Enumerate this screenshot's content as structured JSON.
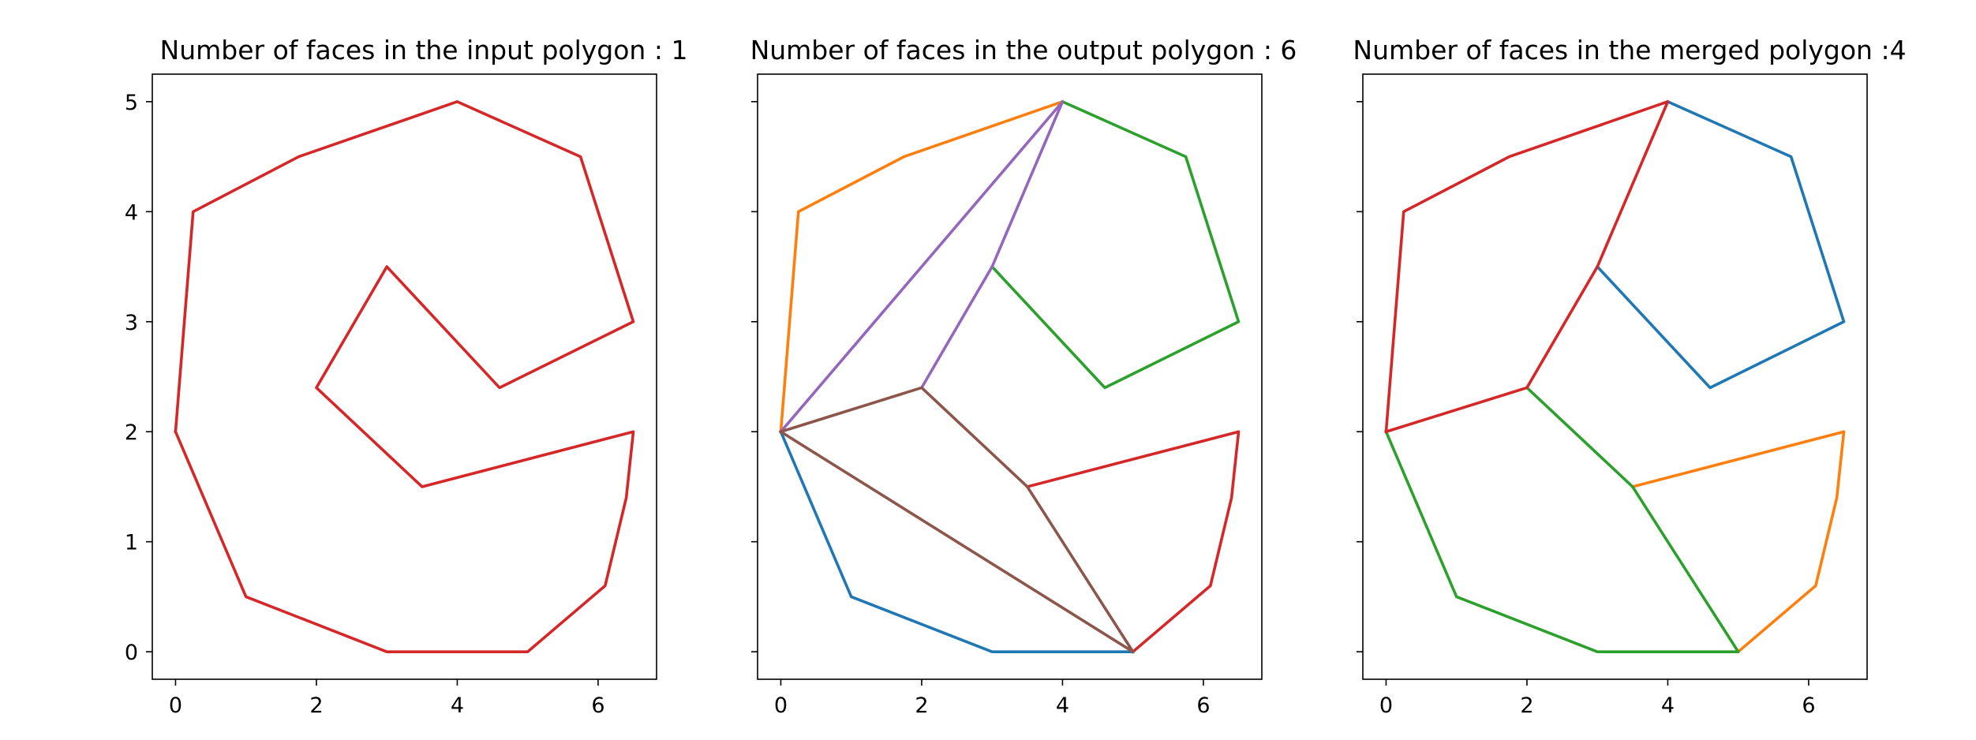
{
  "chart_data": [
    {
      "type": "line",
      "title": "Number of faces in the input polygon :  1",
      "xlim": [
        -0.33,
        6.83
      ],
      "ylim": [
        -0.25,
        5.25
      ],
      "x_ticks": [
        0,
        2,
        4,
        6
      ],
      "y_ticks": [
        0,
        1,
        2,
        3,
        4,
        5
      ],
      "show_y_tick_labels": true,
      "series": [
        {
          "color": "#d62728",
          "points": [
            [
              0,
              2
            ],
            [
              0.25,
              4
            ],
            [
              1.75,
              4.5
            ],
            [
              4,
              5
            ],
            [
              5.75,
              4.5
            ],
            [
              6.5,
              3
            ],
            [
              4.6,
              2.4
            ],
            [
              3,
              3.5
            ],
            [
              2,
              2.4
            ],
            [
              3.5,
              1.5
            ],
            [
              6.5,
              2
            ],
            [
              6.4,
              1.4
            ],
            [
              6.1,
              0.6
            ],
            [
              5,
              0
            ],
            [
              3,
              0
            ],
            [
              1,
              0.5
            ],
            [
              0,
              2
            ]
          ]
        }
      ]
    },
    {
      "type": "line",
      "title": "Number of faces in the output polygon : 6",
      "xlim": [
        -0.33,
        6.83
      ],
      "ylim": [
        -0.25,
        5.25
      ],
      "x_ticks": [
        0,
        2,
        4,
        6
      ],
      "y_ticks": [
        0,
        1,
        2,
        3,
        4,
        5
      ],
      "show_y_tick_labels": false,
      "series": [
        {
          "color": "#1f77b4",
          "points": [
            [
              0,
              2
            ],
            [
              1,
              0.5
            ],
            [
              3,
              0
            ],
            [
              5,
              0
            ]
          ]
        },
        {
          "color": "#ff7f0e",
          "points": [
            [
              0,
              2
            ],
            [
              0.25,
              4
            ],
            [
              1.75,
              4.5
            ],
            [
              4,
              5
            ]
          ]
        },
        {
          "color": "#2ca02c",
          "points": [
            [
              4,
              5
            ],
            [
              5.75,
              4.5
            ],
            [
              6.5,
              3
            ],
            [
              4.6,
              2.4
            ],
            [
              3,
              3.5
            ]
          ]
        },
        {
          "color": "#d62728",
          "points": [
            [
              3.5,
              1.5
            ],
            [
              6.5,
              2
            ],
            [
              6.4,
              1.4
            ],
            [
              6.1,
              0.6
            ],
            [
              5,
              0
            ]
          ]
        },
        {
          "color": "#9467bd",
          "points": [
            [
              0,
              2
            ],
            [
              4,
              5
            ],
            [
              3,
              3.5
            ],
            [
              2,
              2.4
            ]
          ]
        },
        {
          "color": "#8c564b",
          "points": [
            [
              0,
              2
            ],
            [
              2,
              2.4
            ],
            [
              3.5,
              1.5
            ],
            [
              5,
              0
            ],
            [
              0,
              2
            ]
          ]
        }
      ]
    },
    {
      "type": "line",
      "title": "Number of faces in the merged polygon :4",
      "xlim": [
        -0.33,
        6.83
      ],
      "ylim": [
        -0.25,
        5.25
      ],
      "x_ticks": [
        0,
        2,
        4,
        6
      ],
      "y_ticks": [
        0,
        1,
        2,
        3,
        4,
        5
      ],
      "show_y_tick_labels": false,
      "series": [
        {
          "color": "#1f77b4",
          "points": [
            [
              4,
              5
            ],
            [
              5.75,
              4.5
            ],
            [
              6.5,
              3
            ],
            [
              4.6,
              2.4
            ],
            [
              3,
              3.5
            ]
          ]
        },
        {
          "color": "#ff7f0e",
          "points": [
            [
              3.5,
              1.5
            ],
            [
              6.5,
              2
            ],
            [
              6.4,
              1.4
            ],
            [
              6.1,
              0.6
            ],
            [
              5,
              0
            ]
          ]
        },
        {
          "color": "#2ca02c",
          "points": [
            [
              0,
              2
            ],
            [
              1,
              0.5
            ],
            [
              3,
              0
            ],
            [
              5,
              0
            ],
            [
              3.5,
              1.5
            ],
            [
              2,
              2.4
            ]
          ]
        },
        {
          "color": "#d62728",
          "points": [
            [
              0,
              2
            ],
            [
              0.25,
              4
            ],
            [
              1.75,
              4.5
            ],
            [
              4,
              5
            ],
            [
              3,
              3.5
            ],
            [
              2,
              2.4
            ],
            [
              0,
              2
            ]
          ]
        }
      ]
    }
  ]
}
